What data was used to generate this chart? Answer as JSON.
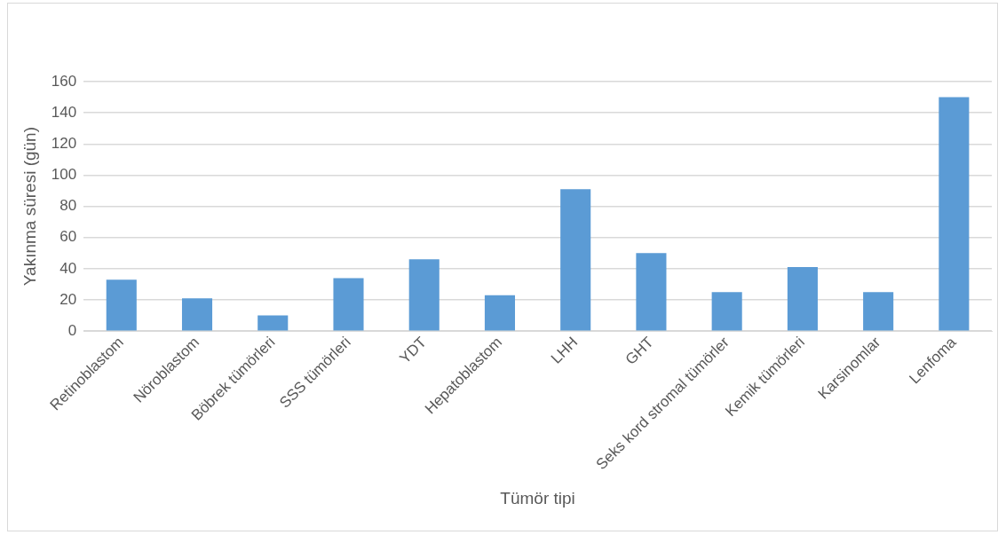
{
  "chart_data": {
    "type": "bar",
    "xlabel": "Tümör tipi",
    "ylabel": "Yakınma süresi (gün)",
    "categories": [
      "Retinoblastom",
      "Nöroblastom",
      "Böbrek tümörleri",
      "SSS tümörleri",
      "YDT",
      "Hepatoblastom",
      "LHH",
      "GHT",
      "Seks kord stromal tümörler",
      "Kemik tümörleri",
      "Karsinomlar",
      "Lenfoma"
    ],
    "values": [
      33,
      21,
      10,
      34,
      46,
      23,
      91,
      50,
      25,
      41,
      25,
      150
    ],
    "color": "#5b9bd5",
    "ylim": [
      0,
      160
    ],
    "yticks": [
      0,
      20,
      40,
      60,
      80,
      100,
      120,
      140,
      160
    ],
    "grid": "y"
  }
}
